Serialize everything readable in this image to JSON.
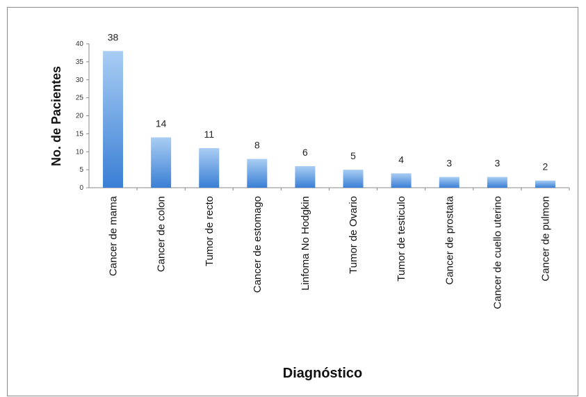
{
  "chart_data": {
    "type": "bar",
    "categories": [
      "Cancer de mama",
      "Cancer de colon",
      "Tumor de recto",
      "Cancer de estomago",
      "Linfoma No Hodgkin",
      "Tumor de Ovario",
      "Tumor de testiculo",
      "Cancer de prostata",
      "Cancer de cuello uterino",
      "Cancer de pulmon"
    ],
    "values": [
      38,
      14,
      11,
      8,
      6,
      5,
      4,
      3,
      3,
      2
    ],
    "data_labels": [
      "38",
      "14",
      "11",
      "8",
      "6",
      "5",
      "4",
      "3",
      "3",
      "2"
    ],
    "xlabel": "Diagnóstico",
    "ylabel": "No. de Pacientes",
    "ylim": [
      0,
      40
    ],
    "yticks": [
      "0",
      "5",
      "10",
      "15",
      "20",
      "25",
      "30",
      "35",
      "40"
    ],
    "grid": false,
    "legend": "none",
    "bar_color": "#3a7fd5",
    "bar_color_light": "#a9cdf3"
  }
}
